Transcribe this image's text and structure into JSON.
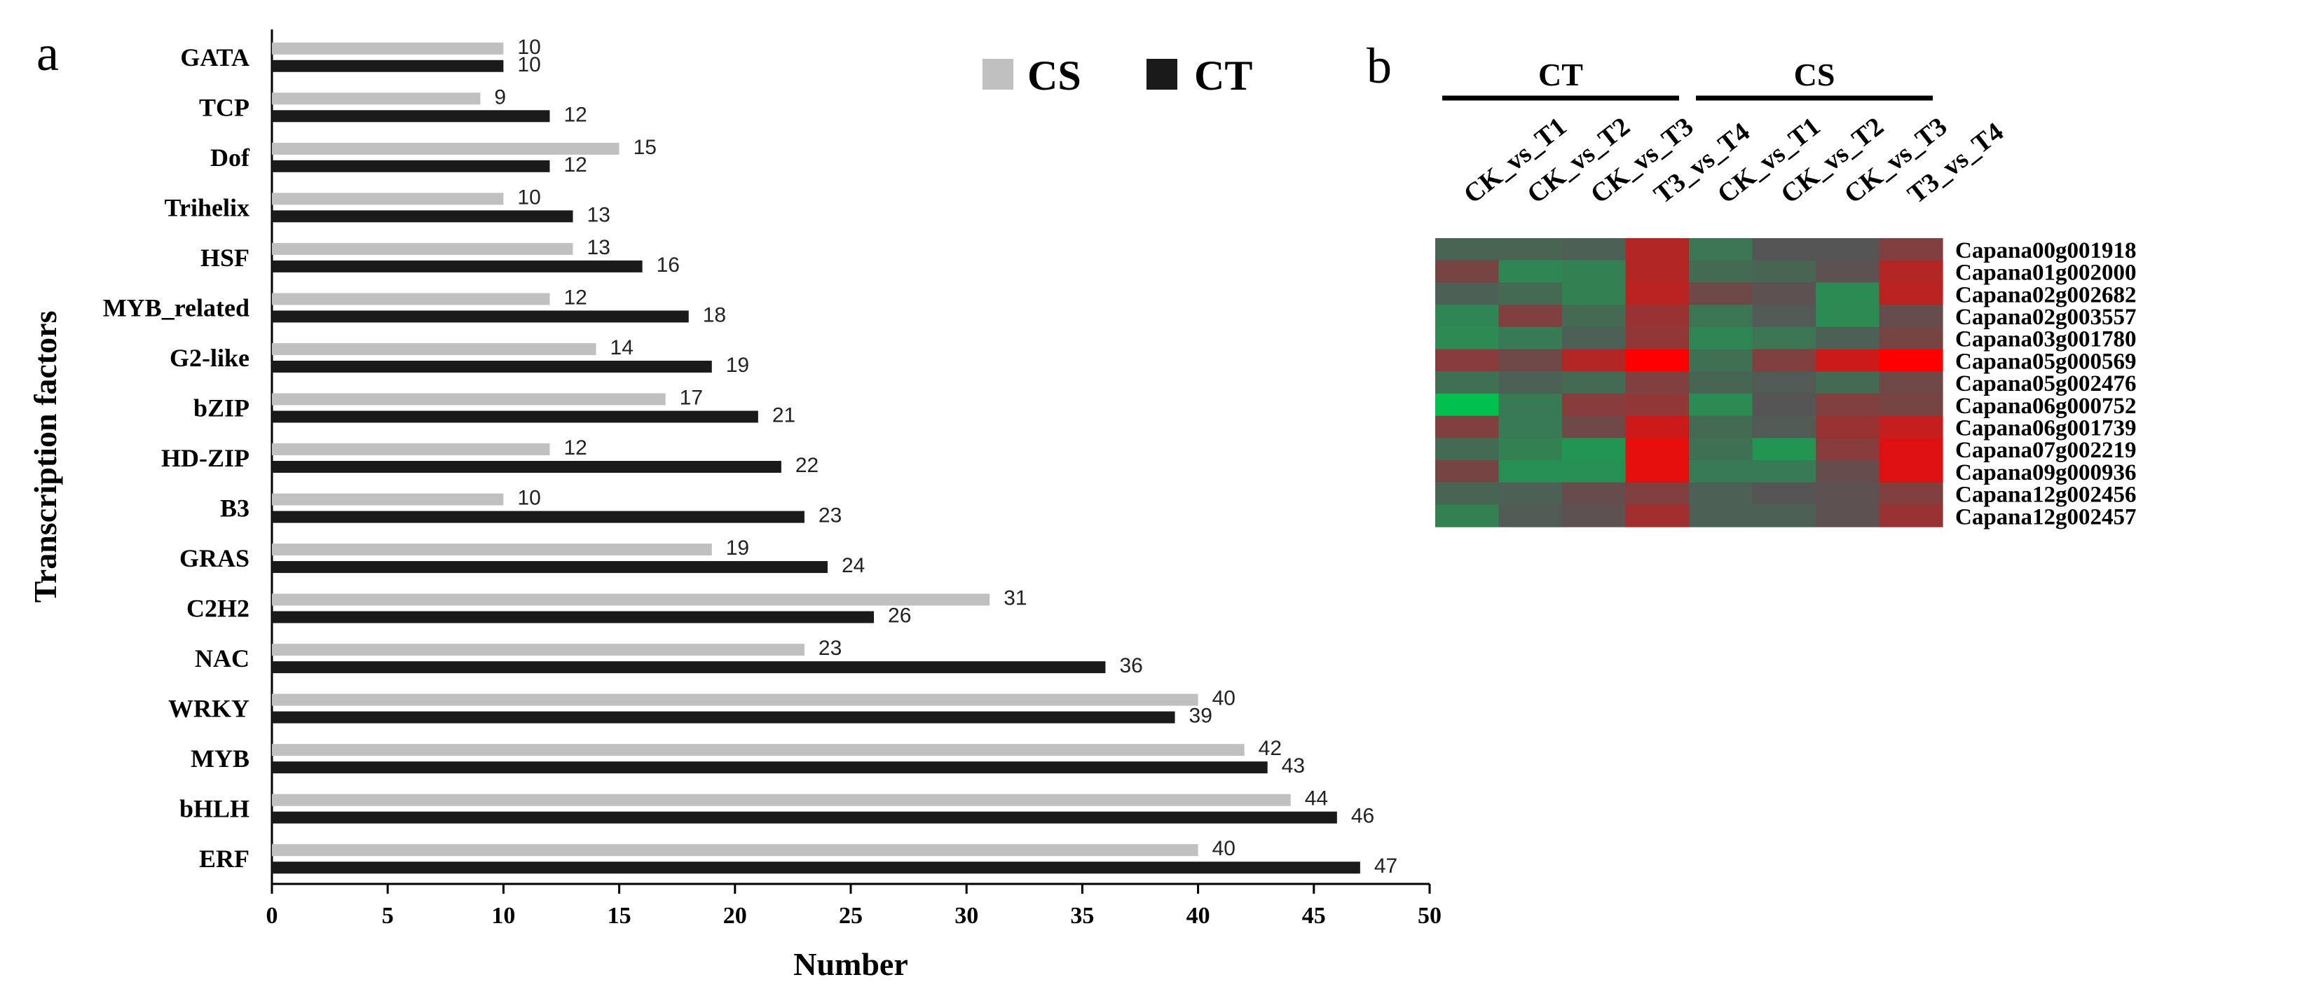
{
  "chart_data": [
    {
      "type": "bar",
      "orientation": "horizontal",
      "panel_label": "a",
      "categories": [
        "GATA",
        "TCP",
        "Dof",
        "Trihelix",
        "HSF",
        "MYB_related",
        "G2-like",
        "bZIP",
        "HD-ZIP",
        "B3",
        "GRAS",
        "C2H2",
        "NAC",
        "WRKY",
        "MYB",
        "bHLH",
        "ERF"
      ],
      "series": [
        {
          "name": "CS",
          "color": "#c0c0c0",
          "values": [
            10,
            9,
            15,
            10,
            13,
            12,
            14,
            17,
            12,
            10,
            19,
            31,
            23,
            40,
            42,
            44,
            40
          ]
        },
        {
          "name": "CT",
          "color": "#1a1a1a",
          "values": [
            10,
            12,
            12,
            13,
            16,
            18,
            19,
            21,
            22,
            23,
            24,
            26,
            36,
            39,
            43,
            46,
            47
          ]
        }
      ],
      "xlabel": "Number",
      "ylabel": "Transcription factors",
      "xlim": [
        0,
        50
      ],
      "xticks": [
        "0",
        "5",
        "10",
        "15",
        "20",
        "25",
        "30",
        "35",
        "40",
        "45",
        "50"
      ],
      "legend_position": "top-right",
      "grid": false
    },
    {
      "type": "heatmap",
      "panel_label": "b",
      "groups": [
        {
          "label": "CT",
          "columns": [
            "CK_vs_T1",
            "CK_vs_T2",
            "CK_vs_T3",
            "T3_vs_T4"
          ]
        },
        {
          "label": "CS",
          "columns": [
            "CK_vs_T1",
            "CK_vs_T2",
            "CK_vs_T3",
            "T3_vs_T4"
          ]
        }
      ],
      "rows": [
        "Capana00g001918",
        "Capana01g002000",
        "Capana02g002682",
        "Capana02g003557",
        "Capana03g001780",
        "Capana05g000569",
        "Capana05g002476",
        "Capana06g000752",
        "Capana06g001739",
        "Capana07g002219",
        "Capana09g000936",
        "Capana12g002456",
        "Capana12g002457"
      ],
      "colors": {
        "low": "#00c050",
        "mid": "#555555",
        "high": "#ff0000"
      },
      "values": [
        [
          -0.15,
          -0.15,
          -0.1,
          0.55,
          -0.3,
          0.0,
          0.0,
          0.25
        ],
        [
          0.2,
          -0.45,
          -0.4,
          0.55,
          -0.2,
          -0.15,
          0.05,
          0.55
        ],
        [
          -0.1,
          -0.2,
          -0.4,
          0.6,
          0.15,
          0.05,
          -0.5,
          0.6
        ],
        [
          -0.45,
          0.25,
          -0.2,
          0.4,
          -0.3,
          -0.05,
          -0.5,
          0.1
        ],
        [
          -0.5,
          -0.35,
          -0.1,
          0.35,
          -0.45,
          -0.3,
          -0.1,
          0.2
        ],
        [
          0.3,
          0.15,
          0.55,
          1.0,
          -0.25,
          0.25,
          0.7,
          1.0
        ],
        [
          -0.25,
          -0.1,
          -0.2,
          0.25,
          -0.15,
          -0.05,
          -0.2,
          0.15
        ],
        [
          -1.0,
          -0.35,
          0.3,
          0.35,
          -0.5,
          0.0,
          0.25,
          0.2
        ],
        [
          0.25,
          -0.35,
          0.15,
          0.7,
          -0.2,
          -0.05,
          0.4,
          0.65
        ],
        [
          -0.2,
          -0.4,
          -0.6,
          0.85,
          -0.25,
          -0.6,
          0.3,
          0.8
        ],
        [
          0.2,
          -0.55,
          -0.55,
          0.85,
          -0.35,
          -0.35,
          0.1,
          0.8
        ],
        [
          -0.15,
          -0.1,
          0.1,
          0.25,
          -0.1,
          0.0,
          0.05,
          0.25
        ],
        [
          -0.4,
          -0.05,
          0.05,
          0.45,
          -0.1,
          -0.1,
          0.05,
          0.4
        ]
      ]
    }
  ]
}
